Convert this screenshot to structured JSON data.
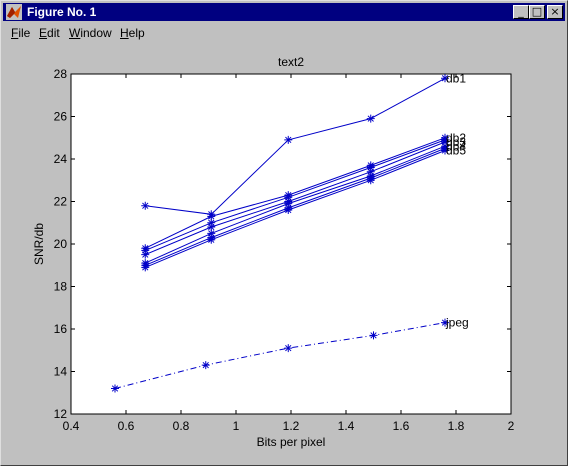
{
  "window": {
    "title": "Figure No. 1",
    "controls": {
      "minimize": "_",
      "maximize": "□",
      "close": "×"
    }
  },
  "menu": [
    {
      "id": "file",
      "label": "File",
      "mnemonic": "F",
      "rest": "ile"
    },
    {
      "id": "edit",
      "label": "Edit",
      "mnemonic": "E",
      "rest": "dit"
    },
    {
      "id": "window",
      "label": "Window",
      "mnemonic": "W",
      "rest": "indow"
    },
    {
      "id": "help",
      "label": "Help",
      "mnemonic": "H",
      "rest": "elp"
    }
  ],
  "colors": {
    "line": "#0000c8",
    "plot_bg": "#ffffff",
    "figure_bg": "#c0c0c0",
    "title_bar": "#000080"
  },
  "chart_data": {
    "type": "line",
    "title": "text2",
    "xlabel": "Bits per pixel",
    "ylabel": "SNR/db",
    "xlim": [
      0.4,
      2
    ],
    "ylim": [
      12,
      28
    ],
    "xticks": [
      "0.4",
      "0.6",
      "0.8",
      "1",
      "1.2",
      "1.4",
      "1.6",
      "1.8",
      "2"
    ],
    "yticks": [
      "12",
      "14",
      "16",
      "18",
      "20",
      "22",
      "24",
      "26",
      "28"
    ],
    "grid": false,
    "marker": "*",
    "series": [
      {
        "name": "db1",
        "style": "solid",
        "x": [
          0.67,
          0.91,
          1.19,
          1.49,
          1.76
        ],
        "y": [
          21.8,
          21.4,
          24.9,
          25.9,
          27.8
        ]
      },
      {
        "name": "",
        "style": "solid",
        "x": [
          0.67,
          0.91,
          1.19,
          1.49,
          1.76
        ],
        "y": [
          19.8,
          21.3,
          22.3,
          23.7,
          25.0
        ]
      },
      {
        "name": "",
        "style": "solid",
        "x": [
          0.67,
          0.91,
          1.19,
          1.49,
          1.76
        ],
        "y": [
          19.7,
          21.0,
          22.2,
          23.6,
          24.9
        ]
      },
      {
        "name": "",
        "style": "solid",
        "x": [
          0.67,
          0.91,
          1.19,
          1.49,
          1.76
        ],
        "y": [
          19.5,
          20.8,
          22.0,
          23.4,
          24.8
        ]
      },
      {
        "name": "",
        "style": "solid",
        "x": [
          0.67,
          0.91,
          1.19,
          1.49,
          1.76
        ],
        "y": [
          19.1,
          20.5,
          21.9,
          23.2,
          24.6
        ]
      },
      {
        "name": "",
        "style": "solid",
        "x": [
          0.67,
          0.91,
          1.19,
          1.49,
          1.76
        ],
        "y": [
          19.0,
          20.3,
          21.7,
          23.1,
          24.5
        ]
      },
      {
        "name": "",
        "style": "solid",
        "x": [
          0.67,
          0.91,
          1.19,
          1.49,
          1.76
        ],
        "y": [
          18.9,
          20.2,
          21.6,
          23.0,
          24.4
        ]
      },
      {
        "name": "jpeg",
        "style": "dashdot",
        "x": [
          0.56,
          0.89,
          1.19,
          1.5,
          1.76
        ],
        "y": [
          13.2,
          14.3,
          15.1,
          15.7,
          16.3
        ]
      }
    ],
    "annotations": [
      {
        "text": "db1",
        "x": 1.76,
        "y": 27.8
      },
      {
        "text": "db2",
        "x": 1.76,
        "y": 25.0
      },
      {
        "text": "db3",
        "x": 1.76,
        "y": 24.8
      },
      {
        "text": "db4",
        "x": 1.76,
        "y": 24.6
      },
      {
        "text": "db5",
        "x": 1.76,
        "y": 24.4
      },
      {
        "text": "jpeg",
        "x": 1.76,
        "y": 16.3
      }
    ]
  }
}
